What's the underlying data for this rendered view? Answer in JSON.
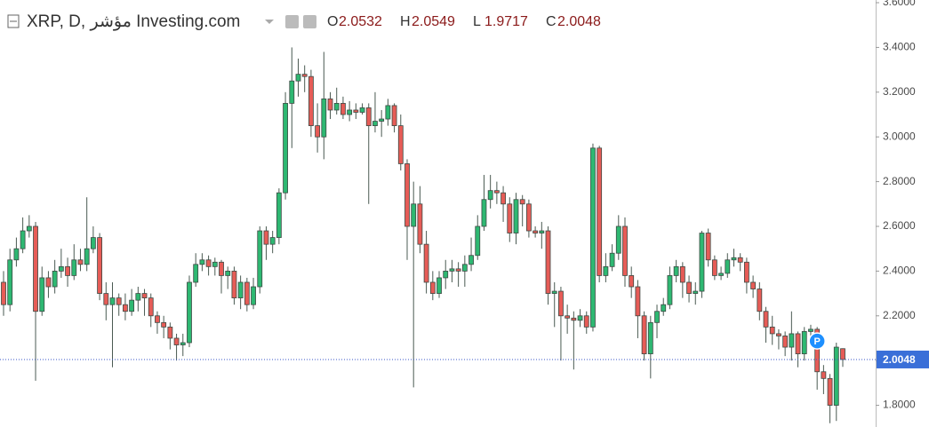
{
  "chart_data": {
    "type": "candlestick",
    "title": "XRP, D, مؤشر Investing.com",
    "ohlc_labels": [
      "O",
      "H",
      "L",
      "C"
    ],
    "up_color": "#2eb872",
    "down_color": "#e65c57",
    "ylim": [
      1.703,
      3.612
    ],
    "yticks": [
      {
        "value": 1.8,
        "label": "1.8000"
      },
      {
        "value": 2.0,
        "label": "2.0000"
      },
      {
        "value": 2.2,
        "label": "2.2000"
      },
      {
        "value": 2.4,
        "label": "2.4000"
      },
      {
        "value": 2.6,
        "label": "2.6000"
      },
      {
        "value": 2.8,
        "label": "2.8000"
      },
      {
        "value": 3.0,
        "label": "3.0000"
      },
      {
        "value": 3.2,
        "label": "3.2000"
      },
      {
        "value": 3.4,
        "label": "3.4000"
      },
      {
        "value": 3.6,
        "label": "3.6000"
      }
    ],
    "ohlc": [
      [
        2.35,
        2.4,
        2.2,
        2.25
      ],
      [
        2.25,
        2.5,
        2.22,
        2.45
      ],
      [
        2.45,
        2.55,
        2.42,
        2.5
      ],
      [
        2.5,
        2.64,
        2.48,
        2.58
      ],
      [
        2.58,
        2.65,
        2.55,
        2.6
      ],
      [
        2.6,
        2.62,
        1.91,
        2.22
      ],
      [
        2.22,
        2.42,
        2.2,
        2.37
      ],
      [
        2.37,
        2.4,
        2.28,
        2.33
      ],
      [
        2.33,
        2.45,
        2.3,
        2.4
      ],
      [
        2.4,
        2.5,
        2.37,
        2.42
      ],
      [
        2.42,
        2.46,
        2.33,
        2.38
      ],
      [
        2.38,
        2.52,
        2.36,
        2.45
      ],
      [
        2.45,
        2.5,
        2.4,
        2.43
      ],
      [
        2.43,
        2.73,
        2.4,
        2.5
      ],
      [
        2.5,
        2.6,
        2.48,
        2.55
      ],
      [
        2.55,
        2.57,
        2.27,
        2.3
      ],
      [
        2.3,
        2.35,
        2.18,
        2.25
      ],
      [
        2.25,
        2.35,
        1.97,
        2.28
      ],
      [
        2.28,
        2.3,
        2.2,
        2.25
      ],
      [
        2.25,
        2.3,
        2.18,
        2.22
      ],
      [
        2.22,
        2.32,
        2.2,
        2.27
      ],
      [
        2.27,
        2.33,
        2.22,
        2.3
      ],
      [
        2.3,
        2.32,
        2.2,
        2.28
      ],
      [
        2.28,
        2.3,
        2.15,
        2.2
      ],
      [
        2.2,
        2.22,
        2.12,
        2.17
      ],
      [
        2.17,
        2.2,
        2.1,
        2.15
      ],
      [
        2.15,
        2.17,
        2.05,
        2.1
      ],
      [
        2.1,
        2.12,
        2.0,
        2.07
      ],
      [
        2.07,
        2.12,
        2.02,
        2.08
      ],
      [
        2.08,
        2.38,
        2.06,
        2.35
      ],
      [
        2.35,
        2.48,
        2.33,
        2.43
      ],
      [
        2.43,
        2.48,
        2.4,
        2.45
      ],
      [
        2.45,
        2.47,
        2.38,
        2.42
      ],
      [
        2.42,
        2.46,
        2.38,
        2.44
      ],
      [
        2.44,
        2.45,
        2.3,
        2.38
      ],
      [
        2.38,
        2.42,
        2.32,
        2.4
      ],
      [
        2.4,
        2.42,
        2.25,
        2.28
      ],
      [
        2.28,
        2.38,
        2.23,
        2.35
      ],
      [
        2.35,
        2.37,
        2.22,
        2.25
      ],
      [
        2.25,
        2.37,
        2.23,
        2.33
      ],
      [
        2.33,
        2.6,
        2.3,
        2.58
      ],
      [
        2.58,
        2.6,
        2.45,
        2.52
      ],
      [
        2.52,
        2.58,
        2.48,
        2.55
      ],
      [
        2.55,
        2.77,
        2.52,
        2.75
      ],
      [
        2.75,
        3.2,
        2.72,
        3.15
      ],
      [
        3.15,
        3.4,
        2.95,
        3.25
      ],
      [
        3.25,
        3.35,
        3.18,
        3.28
      ],
      [
        3.28,
        3.32,
        3.2,
        3.27
      ],
      [
        3.27,
        3.3,
        3.0,
        3.05
      ],
      [
        3.05,
        3.15,
        2.93,
        3.0
      ],
      [
        3.0,
        3.38,
        2.9,
        3.17
      ],
      [
        3.17,
        3.2,
        3.08,
        3.12
      ],
      [
        3.12,
        3.22,
        3.1,
        3.15
      ],
      [
        3.15,
        3.18,
        3.08,
        3.1
      ],
      [
        3.1,
        3.16,
        3.07,
        3.12
      ],
      [
        3.12,
        3.15,
        3.08,
        3.11
      ],
      [
        3.11,
        3.15,
        3.1,
        3.13
      ],
      [
        3.13,
        3.15,
        2.7,
        3.05
      ],
      [
        3.05,
        3.2,
        3.02,
        3.07
      ],
      [
        3.07,
        3.12,
        3.0,
        3.08
      ],
      [
        3.08,
        3.17,
        3.05,
        3.14
      ],
      [
        3.14,
        3.15,
        3.02,
        3.05
      ],
      [
        3.05,
        3.1,
        2.85,
        2.88
      ],
      [
        2.88,
        2.9,
        2.45,
        2.6
      ],
      [
        2.6,
        2.8,
        1.88,
        2.7
      ],
      [
        2.7,
        2.78,
        2.48,
        2.52
      ],
      [
        2.52,
        2.58,
        2.3,
        2.35
      ],
      [
        2.35,
        2.4,
        2.27,
        2.3
      ],
      [
        2.3,
        2.4,
        2.28,
        2.37
      ],
      [
        2.37,
        2.45,
        2.32,
        2.4
      ],
      [
        2.4,
        2.45,
        2.35,
        2.41
      ],
      [
        2.41,
        2.44,
        2.33,
        2.4
      ],
      [
        2.4,
        2.47,
        2.33,
        2.43
      ],
      [
        2.43,
        2.55,
        2.4,
        2.47
      ],
      [
        2.47,
        2.65,
        2.45,
        2.6
      ],
      [
        2.6,
        2.83,
        2.58,
        2.72
      ],
      [
        2.72,
        2.83,
        2.68,
        2.76
      ],
      [
        2.76,
        2.8,
        2.7,
        2.75
      ],
      [
        2.75,
        2.78,
        2.62,
        2.7
      ],
      [
        2.7,
        2.73,
        2.53,
        2.57
      ],
      [
        2.57,
        2.75,
        2.52,
        2.72
      ],
      [
        2.72,
        2.74,
        2.6,
        2.7
      ],
      [
        2.7,
        2.72,
        2.55,
        2.58
      ],
      [
        2.58,
        2.6,
        2.55,
        2.57
      ],
      [
        2.57,
        2.62,
        2.5,
        2.58
      ],
      [
        2.58,
        2.6,
        2.25,
        2.3
      ],
      [
        2.3,
        2.35,
        2.15,
        2.31
      ],
      [
        2.31,
        2.33,
        2.0,
        2.2
      ],
      [
        2.2,
        2.25,
        2.12,
        2.19
      ],
      [
        2.19,
        2.22,
        1.96,
        2.18
      ],
      [
        2.18,
        2.23,
        2.15,
        2.2
      ],
      [
        2.2,
        2.22,
        2.12,
        2.15
      ],
      [
        2.15,
        2.97,
        2.13,
        2.95
      ],
      [
        2.95,
        2.96,
        2.35,
        2.38
      ],
      [
        2.38,
        2.48,
        2.35,
        2.42
      ],
      [
        2.42,
        2.52,
        2.4,
        2.48
      ],
      [
        2.48,
        2.65,
        2.45,
        2.6
      ],
      [
        2.6,
        2.64,
        2.33,
        2.38
      ],
      [
        2.38,
        2.42,
        2.28,
        2.33
      ],
      [
        2.33,
        2.36,
        2.1,
        2.2
      ],
      [
        2.2,
        2.22,
        2.0,
        2.03
      ],
      [
        2.03,
        2.2,
        1.92,
        2.17
      ],
      [
        2.17,
        2.25,
        2.1,
        2.22
      ],
      [
        2.22,
        2.28,
        2.2,
        2.25
      ],
      [
        2.25,
        2.42,
        2.23,
        2.38
      ],
      [
        2.38,
        2.45,
        2.35,
        2.42
      ],
      [
        2.42,
        2.44,
        2.28,
        2.35
      ],
      [
        2.35,
        2.38,
        2.26,
        2.3
      ],
      [
        2.3,
        2.35,
        2.25,
        2.31
      ],
      [
        2.31,
        2.58,
        2.28,
        2.57
      ],
      [
        2.57,
        2.59,
        2.42,
        2.45
      ],
      [
        2.45,
        2.47,
        2.36,
        2.38
      ],
      [
        2.38,
        2.42,
        2.36,
        2.39
      ],
      [
        2.39,
        2.48,
        2.37,
        2.45
      ],
      [
        2.45,
        2.5,
        2.42,
        2.46
      ],
      [
        2.46,
        2.48,
        2.4,
        2.44
      ],
      [
        2.44,
        2.46,
        2.3,
        2.35
      ],
      [
        2.35,
        2.38,
        2.28,
        2.32
      ],
      [
        2.32,
        2.35,
        2.18,
        2.22
      ],
      [
        2.22,
        2.24,
        2.08,
        2.15
      ],
      [
        2.15,
        2.2,
        2.07,
        2.12
      ],
      [
        2.12,
        2.14,
        2.05,
        2.11
      ],
      [
        2.11,
        2.13,
        2.02,
        2.06
      ],
      [
        2.06,
        2.22,
        2.0,
        2.12
      ],
      [
        2.12,
        2.13,
        1.97,
        2.03
      ],
      [
        2.03,
        2.15,
        2.0,
        2.13
      ],
      [
        2.13,
        2.16,
        2.08,
        2.14
      ],
      [
        2.14,
        2.15,
        1.87,
        1.95
      ],
      [
        1.95,
        1.98,
        1.85,
        1.92
      ],
      [
        1.92,
        1.94,
        1.72,
        1.8
      ],
      [
        1.8,
        2.08,
        1.73,
        2.06
      ],
      [
        2.0532,
        2.0549,
        1.9717,
        2.0048
      ]
    ]
  }
}
